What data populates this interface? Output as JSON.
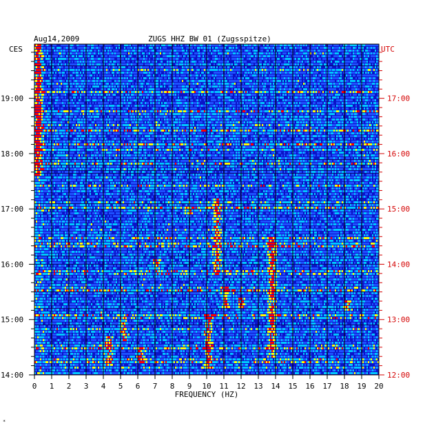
{
  "header": {
    "date": "Aug14,2009",
    "station": "ZUGS HHZ BW 01 (Zugsspitze)",
    "left_tz": "CES",
    "right_tz": "UTC"
  },
  "chart_data": {
    "type": "heatmap",
    "title": "ZUGS HHZ BW 01 (Zugsspitze)",
    "xlabel": "FREQUENCY (HZ)",
    "ylabel": "",
    "xlim": [
      0,
      20
    ],
    "x_ticks": [
      "0",
      "1",
      "2",
      "3",
      "4",
      "5",
      "6",
      "7",
      "8",
      "9",
      "10",
      "11",
      "12",
      "13",
      "14",
      "15",
      "16",
      "17",
      "18",
      "19",
      "20"
    ],
    "time_range_hours_ces": [
      14.0,
      19.98
    ],
    "y_ticks_left": [
      {
        "hour": 19,
        "label": "19:00"
      },
      {
        "hour": 18,
        "label": "18:00"
      },
      {
        "hour": 17,
        "label": "17:00"
      },
      {
        "hour": 16,
        "label": "16:00"
      },
      {
        "hour": 15,
        "label": "15:00"
      },
      {
        "hour": 14,
        "label": "14:00"
      }
    ],
    "y_ticks_right": [
      {
        "hour": 19,
        "label": "17:00"
      },
      {
        "hour": 18,
        "label": "16:00"
      },
      {
        "hour": 17,
        "label": "15:00"
      },
      {
        "hour": 16,
        "label": "14:00"
      },
      {
        "hour": 15,
        "label": "13:00"
      },
      {
        "hour": 14,
        "label": "12:00"
      }
    ],
    "colors": {
      "background": "#0a14c8",
      "low": "#1e50ff",
      "mid": "#00c8ff",
      "high": "#ffff00",
      "peak": "#ff0000",
      "grid": "#000000"
    },
    "hotspots": [
      {
        "f": 0.2,
        "t0": 17.6,
        "t1": 19.98,
        "level": 0.85
      },
      {
        "f": 4.3,
        "t0": 14.15,
        "t1": 14.7,
        "level": 0.75
      },
      {
        "f": 5.2,
        "t0": 14.6,
        "t1": 15.05,
        "level": 0.7
      },
      {
        "f": 6.2,
        "t0": 14.2,
        "t1": 14.5,
        "level": 0.65
      },
      {
        "f": 7.1,
        "t0": 15.9,
        "t1": 16.1,
        "level": 0.6
      },
      {
        "f": 10.1,
        "t0": 14.1,
        "t1": 15.1,
        "level": 0.8
      },
      {
        "f": 10.6,
        "t0": 15.8,
        "t1": 17.2,
        "level": 0.75
      },
      {
        "f": 11.1,
        "t0": 15.2,
        "t1": 15.6,
        "level": 0.7
      },
      {
        "f": 12.0,
        "t0": 15.2,
        "t1": 15.4,
        "level": 0.85
      },
      {
        "f": 13.8,
        "t0": 14.3,
        "t1": 16.5,
        "level": 0.8
      },
      {
        "f": 9.0,
        "t0": 16.9,
        "t1": 17.05,
        "level": 0.7
      },
      {
        "f": 18.2,
        "t0": 15.15,
        "t1": 15.35,
        "level": 0.65
      }
    ]
  }
}
